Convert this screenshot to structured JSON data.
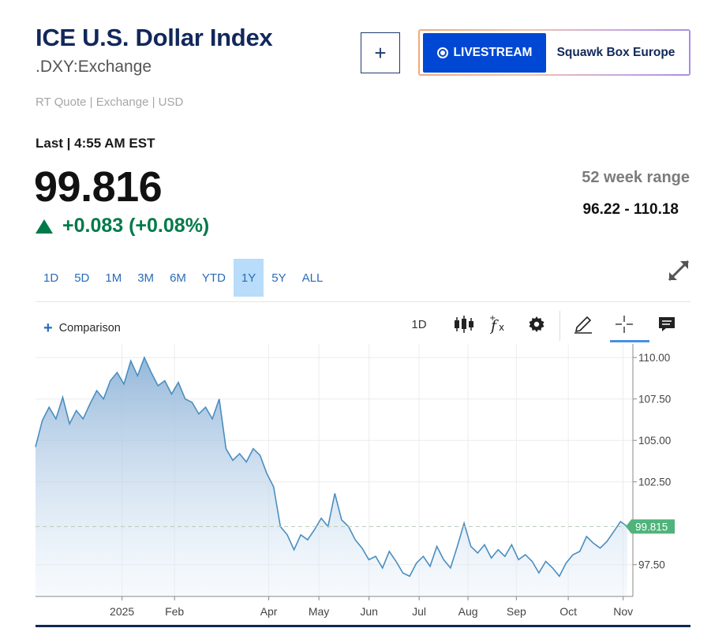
{
  "header": {
    "title": "ICE U.S. Dollar Index",
    "symbol": ".DXY:Exchange",
    "quote_meta": "RT Quote | Exchange | USD",
    "add_button": "+"
  },
  "livestream": {
    "label": "LIVESTREAM",
    "show": "Squawk Box Europe"
  },
  "quote": {
    "last_label": "Last | 4:55 AM EST",
    "price": "99.816",
    "change": "+0.083 (+0.08%)",
    "change_direction": "up",
    "change_color": "#007a4a"
  },
  "range": {
    "label": "52 week range",
    "value": "96.22 - 110.18"
  },
  "timeframes": {
    "items": [
      "1D",
      "5D",
      "1M",
      "3M",
      "6M",
      "YTD",
      "1Y",
      "5Y",
      "ALL"
    ],
    "active": "1Y"
  },
  "toolbar": {
    "comparison": "Comparison",
    "interval": "1D"
  },
  "chart_data": {
    "type": "area",
    "x_labels": [
      "2025",
      "Feb",
      "Apr",
      "May",
      "Jun",
      "Jul",
      "Aug",
      "Sep",
      "Oct",
      "Nov"
    ],
    "y_ticks": [
      "110.00",
      "107.50",
      "105.00",
      "102.50",
      "97.50"
    ],
    "ylim": [
      96.2,
      110.2
    ],
    "current_value": "99.815",
    "reference_line": 99.8,
    "grid": true,
    "colors": {
      "line": "#4a8ec0",
      "fill_top": "#8fb4d8",
      "marker": "#4fb37a"
    },
    "series": [
      {
        "values": [
          104.6,
          106.2,
          107.0,
          106.3,
          107.6,
          106.0,
          106.8,
          106.3,
          107.2,
          108.0,
          107.5,
          108.6,
          109.1,
          108.4,
          109.8,
          108.9,
          110.0,
          109.1,
          108.3,
          108.6,
          107.8,
          108.5,
          107.5,
          107.3,
          106.6,
          107.0,
          106.3,
          107.5,
          104.5,
          103.8,
          104.2,
          103.7,
          104.5,
          104.1,
          103.0,
          102.2,
          99.8,
          99.3,
          98.4,
          99.3,
          99.0,
          99.6,
          100.3,
          99.8,
          101.8,
          100.2,
          99.8,
          99.0,
          98.5,
          97.8,
          98.0,
          97.3,
          98.3,
          97.7,
          97.0,
          96.8,
          97.6,
          98.0,
          97.4,
          98.6,
          97.8,
          97.3,
          98.6,
          100.0,
          98.6,
          98.2,
          98.7,
          97.9,
          98.4,
          98.0,
          98.7,
          97.8,
          98.1,
          97.7,
          97.0,
          97.7,
          97.3,
          96.8,
          97.6,
          98.1,
          98.3,
          99.2,
          98.8,
          98.5,
          98.9,
          99.5,
          100.1,
          99.8
        ]
      }
    ]
  }
}
